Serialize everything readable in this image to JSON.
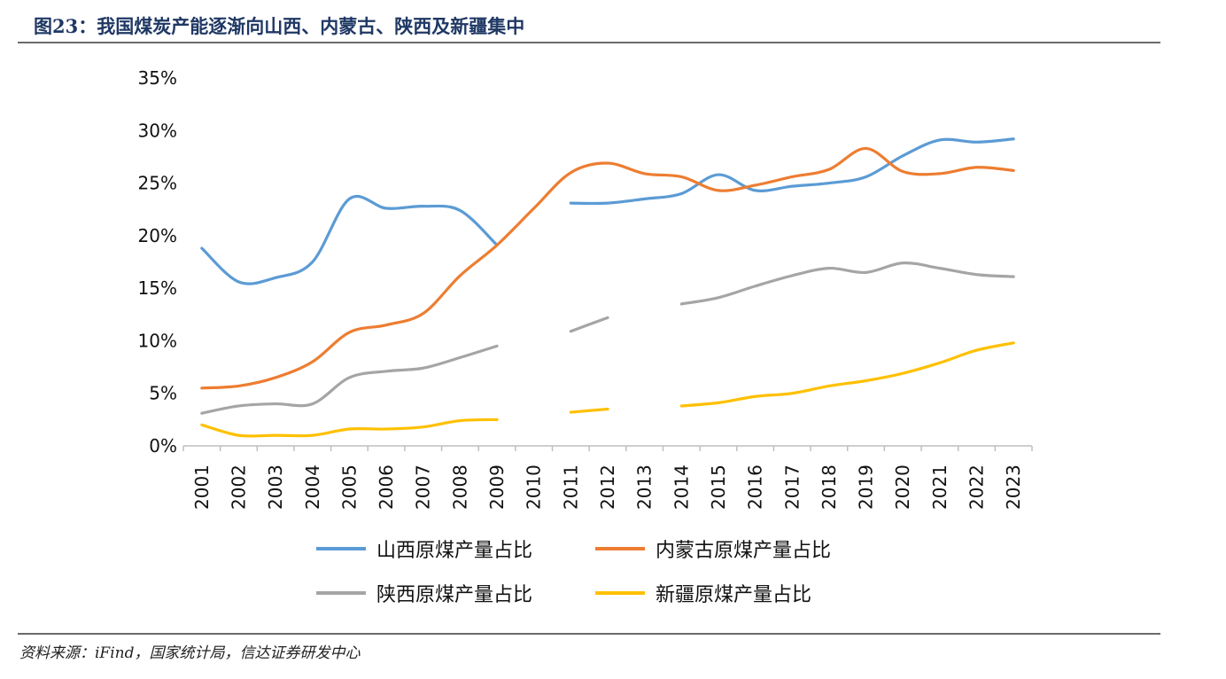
{
  "page": {
    "title": "图23：我国煤炭产能逐渐向山西、内蒙古、陕西及新疆集中",
    "source": "资料来源：iFind，国家统计局，信达证券研发中心"
  },
  "chart_data": {
    "type": "line",
    "title": "",
    "xlabel": "",
    "ylabel": "",
    "ylim": [
      0,
      35
    ],
    "y_ticks": [
      "0%",
      "5%",
      "10%",
      "15%",
      "20%",
      "25%",
      "30%",
      "35%"
    ],
    "grid": false,
    "legend_position": "bottom",
    "x": [
      "2001",
      "2002",
      "2003",
      "2004",
      "2005",
      "2006",
      "2007",
      "2008",
      "2009",
      "2010",
      "2011",
      "2012",
      "2013",
      "2014",
      "2015",
      "2016",
      "2017",
      "2018",
      "2019",
      "2020",
      "2021",
      "2022",
      "2023"
    ],
    "series": [
      {
        "name": "山西原煤产量占比",
        "color": "#5b9bd5",
        "values": [
          18.8,
          15.6,
          16.0,
          17.5,
          23.5,
          22.6,
          22.8,
          22.4,
          19.1,
          null,
          23.1,
          23.1,
          23.5,
          24.0,
          25.8,
          24.3,
          24.7,
          25.0,
          25.6,
          27.6,
          29.1,
          28.9,
          29.2
        ]
      },
      {
        "name": "内蒙古原煤产量占比",
        "color": "#ed7d31",
        "values": [
          5.5,
          5.7,
          6.5,
          8.0,
          10.8,
          11.5,
          12.6,
          16.2,
          19.1,
          22.6,
          26.0,
          26.9,
          25.9,
          25.6,
          24.3,
          24.8,
          25.6,
          26.3,
          28.3,
          26.1,
          25.9,
          26.5,
          26.2
        ]
      },
      {
        "name": "陕西原煤产量占比",
        "color": "#a5a5a5",
        "values": [
          3.1,
          3.8,
          4.0,
          4.0,
          6.5,
          7.1,
          7.4,
          8.4,
          9.5,
          null,
          10.9,
          12.2,
          null,
          13.5,
          14.1,
          15.2,
          16.2,
          16.9,
          16.5,
          17.4,
          16.9,
          16.3,
          16.1
        ]
      },
      {
        "name": "新疆原煤产量占比",
        "color": "#ffc000",
        "values": [
          2.0,
          1.0,
          1.0,
          1.0,
          1.6,
          1.6,
          1.8,
          2.4,
          2.5,
          null,
          3.2,
          3.5,
          null,
          3.8,
          4.1,
          4.7,
          5.0,
          5.7,
          6.2,
          6.9,
          7.9,
          9.1,
          9.8
        ]
      }
    ]
  }
}
